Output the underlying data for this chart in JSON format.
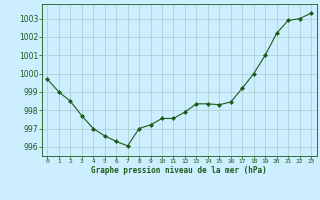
{
  "x": [
    0,
    1,
    2,
    3,
    4,
    5,
    6,
    7,
    8,
    9,
    10,
    11,
    12,
    13,
    14,
    15,
    16,
    17,
    18,
    19,
    20,
    21,
    22,
    23
  ],
  "y": [
    999.7,
    999.0,
    998.5,
    997.7,
    997.0,
    996.6,
    996.3,
    996.05,
    997.0,
    997.2,
    997.55,
    997.55,
    997.9,
    998.35,
    998.35,
    998.3,
    998.45,
    999.2,
    1000.0,
    1001.0,
    1002.2,
    1002.9,
    1003.0,
    1003.3
  ],
  "line_color": "#1a5c1a",
  "marker": "D",
  "marker_size": 2.0,
  "bg_color": "#cceeff",
  "grid_color": "#aacccc",
  "xlabel": "Graphe pression niveau de la mer (hPa)",
  "xlabel_color": "#1a5c1a",
  "tick_color": "#1a5c1a",
  "ylim": [
    995.5,
    1003.8
  ],
  "xlim": [
    -0.5,
    23.5
  ],
  "yticks": [
    996,
    997,
    998,
    999,
    1000,
    1001,
    1002,
    1003
  ],
  "xticks": [
    0,
    1,
    2,
    3,
    4,
    5,
    6,
    7,
    8,
    9,
    10,
    11,
    12,
    13,
    14,
    15,
    16,
    17,
    18,
    19,
    20,
    21,
    22,
    23
  ],
  "xtick_labels": [
    "0",
    "1",
    "2",
    "3",
    "4",
    "5",
    "6",
    "7",
    "8",
    "9",
    "10",
    "11",
    "12",
    "13",
    "14",
    "15",
    "16",
    "17",
    "18",
    "19",
    "20",
    "21",
    "22",
    "23"
  ]
}
